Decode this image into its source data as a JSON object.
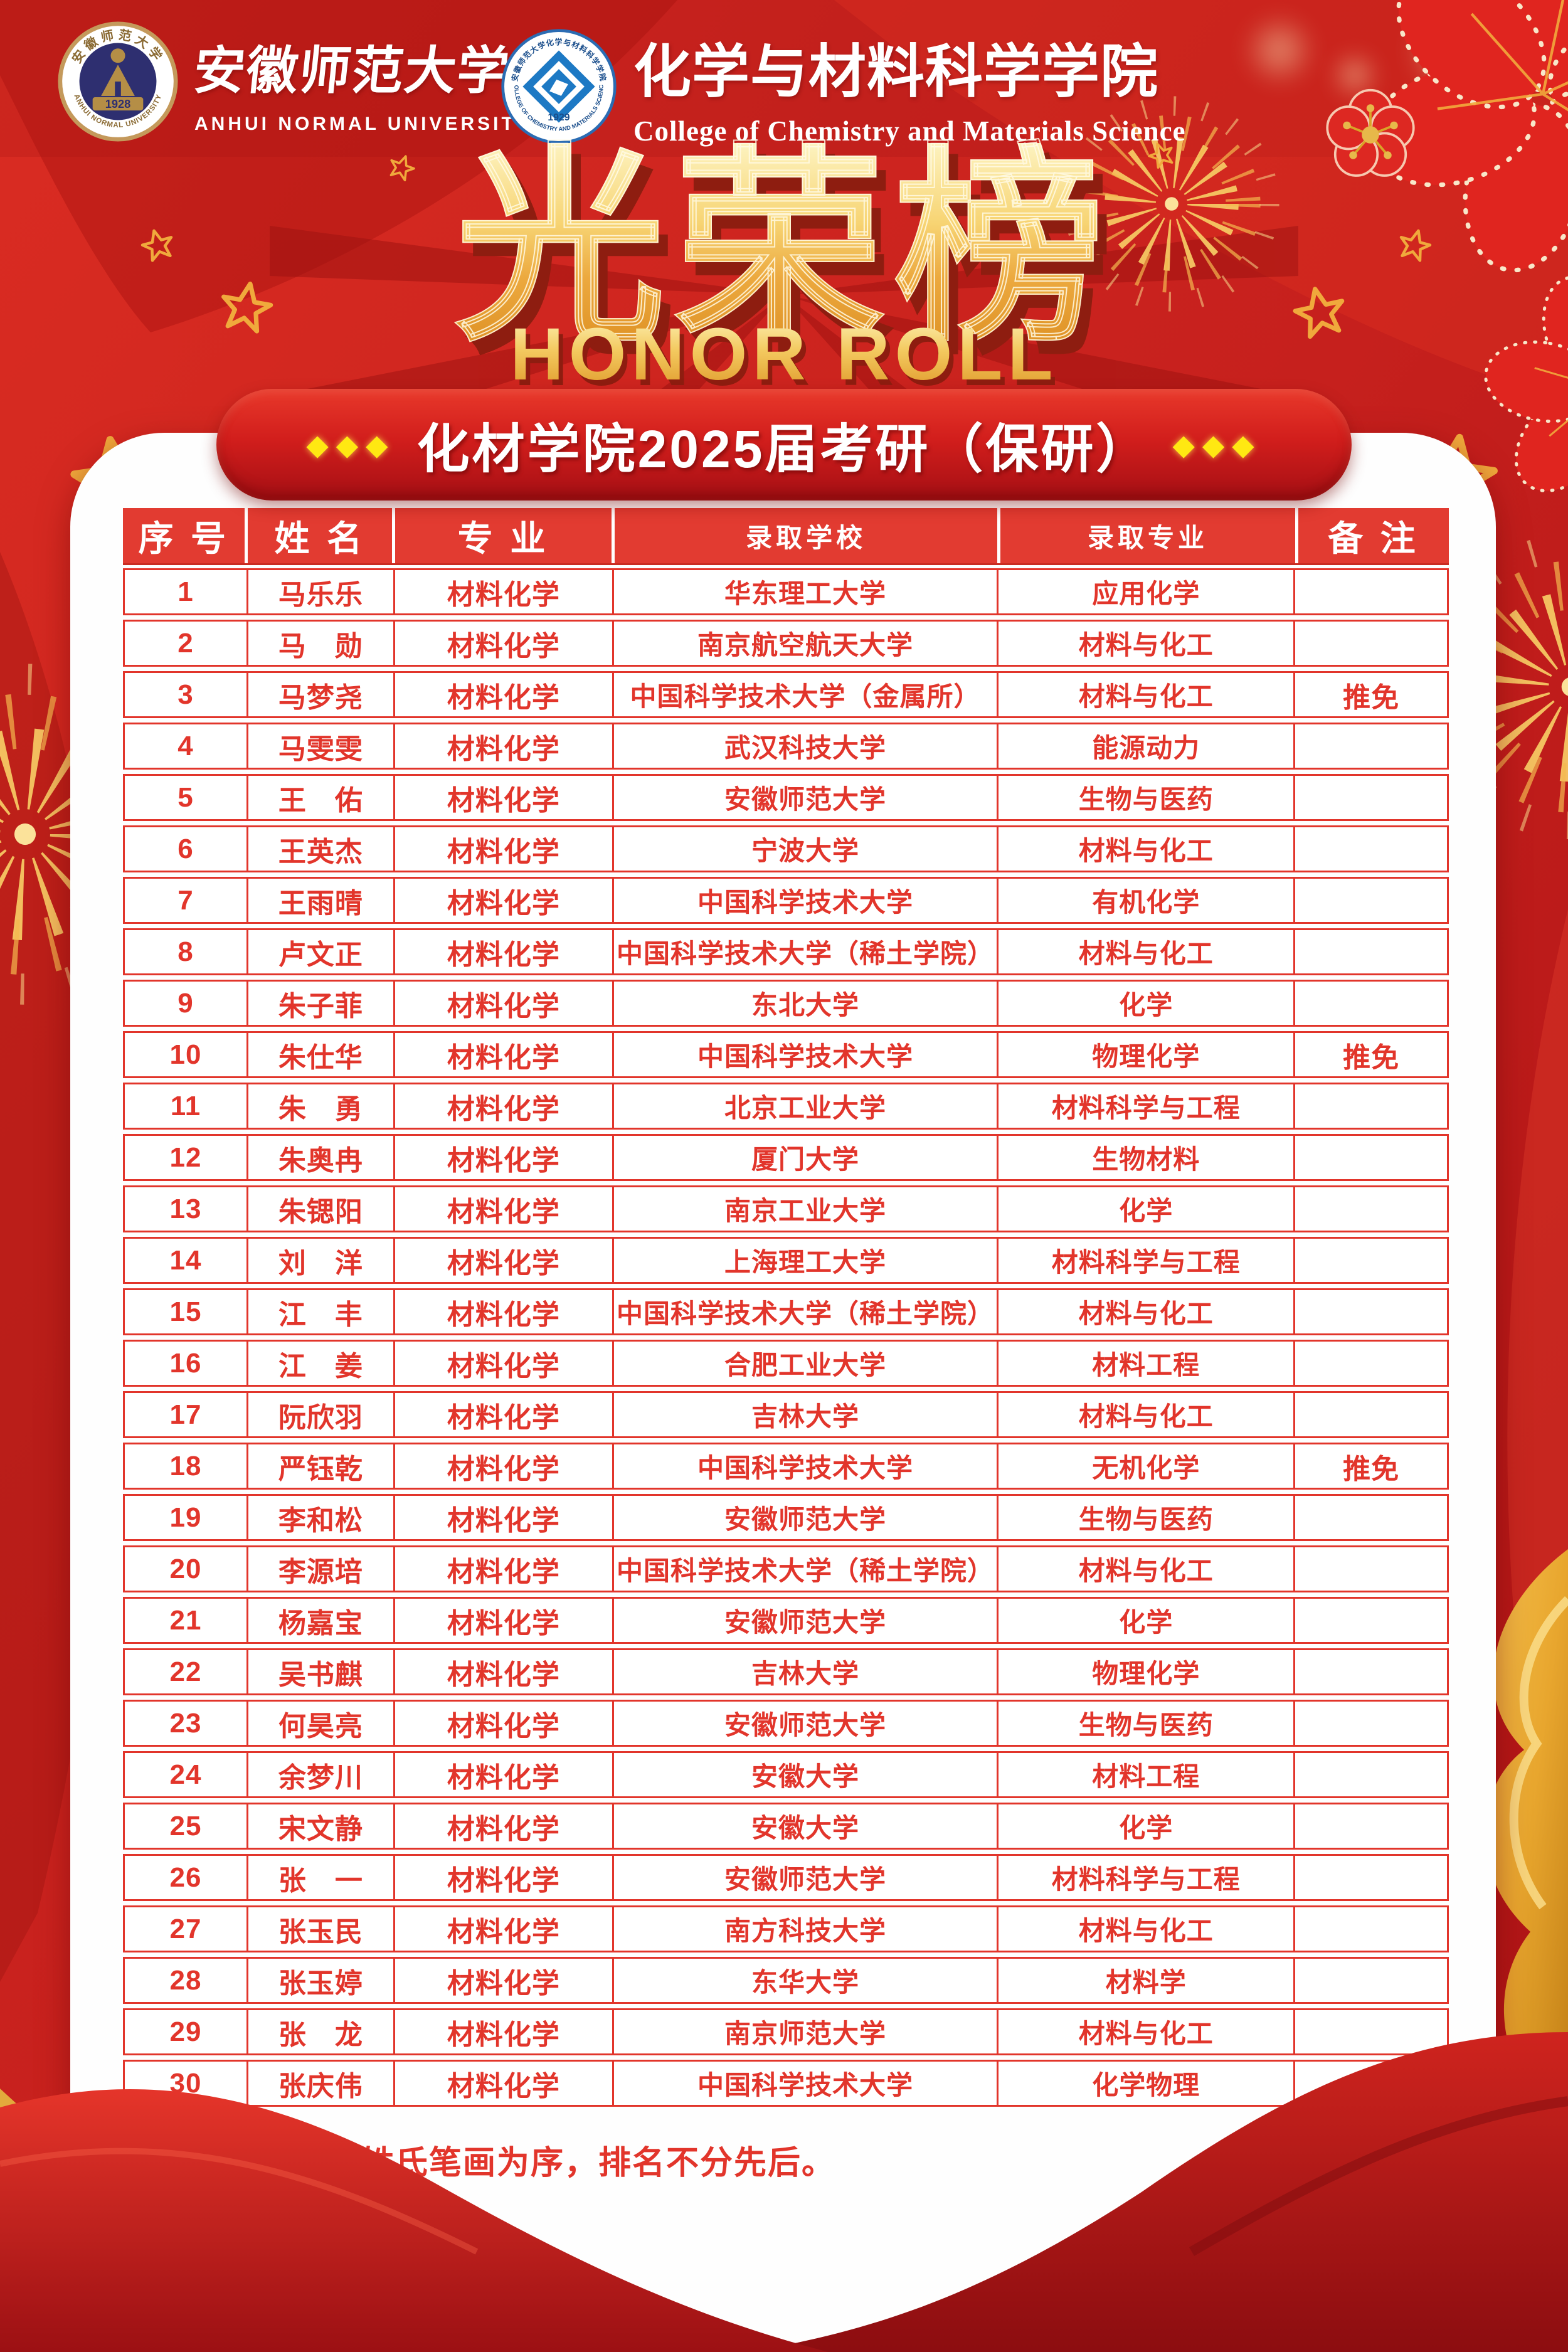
{
  "header": {
    "anu_seal": {
      "year": "1928",
      "ring_zh": "安徽师范大学",
      "ring_en": "ANHUI NORMAL UNIVERSITY"
    },
    "university_name_zh": "安徽师范大学",
    "university_name_en": "ANHUI NORMAL UNIVERSITY",
    "college_seal": {
      "year": "1929",
      "ring_zh": "安徽师范大学化学与材料科学学院",
      "ring_en": "COLLEGE OF CHEMISTRY AND MATERIALS SCIENCE"
    },
    "college_name_zh": "化学与材料科学学院",
    "college_name_en": "College of Chemistry and Materials Science"
  },
  "title": {
    "zh": "光荣榜",
    "en": "HONOR ROLL"
  },
  "banner": {
    "text": "化材学院2025届考研（保研）",
    "diamonds": "◆◆◆"
  },
  "table": {
    "columns": [
      "序 号",
      "姓 名",
      "专 业",
      "录取学校",
      "录取专业",
      "备 注"
    ],
    "rows": [
      {
        "no": "1",
        "name": "马乐乐",
        "major": "材料化学",
        "school": "华东理工大学",
        "admit": "应用化学",
        "note": ""
      },
      {
        "no": "2",
        "name": "马　勋",
        "major": "材料化学",
        "school": "南京航空航天大学",
        "admit": "材料与化工",
        "note": ""
      },
      {
        "no": "3",
        "name": "马梦尧",
        "major": "材料化学",
        "school": "中国科学技术大学（金属所）",
        "admit": "材料与化工",
        "note": "推免"
      },
      {
        "no": "4",
        "name": "马雯雯",
        "major": "材料化学",
        "school": "武汉科技大学",
        "admit": "能源动力",
        "note": ""
      },
      {
        "no": "5",
        "name": "王　佑",
        "major": "材料化学",
        "school": "安徽师范大学",
        "admit": "生物与医药",
        "note": ""
      },
      {
        "no": "6",
        "name": "王英杰",
        "major": "材料化学",
        "school": "宁波大学",
        "admit": "材料与化工",
        "note": ""
      },
      {
        "no": "7",
        "name": "王雨晴",
        "major": "材料化学",
        "school": "中国科学技术大学",
        "admit": "有机化学",
        "note": ""
      },
      {
        "no": "8",
        "name": "卢文正",
        "major": "材料化学",
        "school": "中国科学技术大学（稀土学院）",
        "admit": "材料与化工",
        "note": ""
      },
      {
        "no": "9",
        "name": "朱子菲",
        "major": "材料化学",
        "school": "东北大学",
        "admit": "化学",
        "note": ""
      },
      {
        "no": "10",
        "name": "朱仕华",
        "major": "材料化学",
        "school": "中国科学技术大学",
        "admit": "物理化学",
        "note": "推免"
      },
      {
        "no": "11",
        "name": "朱　勇",
        "major": "材料化学",
        "school": "北京工业大学",
        "admit": "材料科学与工程",
        "note": ""
      },
      {
        "no": "12",
        "name": "朱奥冉",
        "major": "材料化学",
        "school": "厦门大学",
        "admit": "生物材料",
        "note": ""
      },
      {
        "no": "13",
        "name": "朱锶阳",
        "major": "材料化学",
        "school": "南京工业大学",
        "admit": "化学",
        "note": ""
      },
      {
        "no": "14",
        "name": "刘　洋",
        "major": "材料化学",
        "school": "上海理工大学",
        "admit": "材料科学与工程",
        "note": ""
      },
      {
        "no": "15",
        "name": "江　丰",
        "major": "材料化学",
        "school": "中国科学技术大学（稀土学院）",
        "admit": "材料与化工",
        "note": ""
      },
      {
        "no": "16",
        "name": "江　姜",
        "major": "材料化学",
        "school": "合肥工业大学",
        "admit": "材料工程",
        "note": ""
      },
      {
        "no": "17",
        "name": "阮欣羽",
        "major": "材料化学",
        "school": "吉林大学",
        "admit": "材料与化工",
        "note": ""
      },
      {
        "no": "18",
        "name": "严钰乾",
        "major": "材料化学",
        "school": "中国科学技术大学",
        "admit": "无机化学",
        "note": "推免"
      },
      {
        "no": "19",
        "name": "李和松",
        "major": "材料化学",
        "school": "安徽师范大学",
        "admit": "生物与医药",
        "note": ""
      },
      {
        "no": "20",
        "name": "李源培",
        "major": "材料化学",
        "school": "中国科学技术大学（稀土学院）",
        "admit": "材料与化工",
        "note": ""
      },
      {
        "no": "21",
        "name": "杨嘉宝",
        "major": "材料化学",
        "school": "安徽师范大学",
        "admit": "化学",
        "note": ""
      },
      {
        "no": "22",
        "name": "吴书麒",
        "major": "材料化学",
        "school": "吉林大学",
        "admit": "物理化学",
        "note": ""
      },
      {
        "no": "23",
        "name": "何昊亮",
        "major": "材料化学",
        "school": "安徽师范大学",
        "admit": "生物与医药",
        "note": ""
      },
      {
        "no": "24",
        "name": "余梦川",
        "major": "材料化学",
        "school": "安徽大学",
        "admit": "材料工程",
        "note": ""
      },
      {
        "no": "25",
        "name": "宋文静",
        "major": "材料化学",
        "school": "安徽大学",
        "admit": "化学",
        "note": ""
      },
      {
        "no": "26",
        "name": "张　一",
        "major": "材料化学",
        "school": "安徽师范大学",
        "admit": "材料科学与工程",
        "note": ""
      },
      {
        "no": "27",
        "name": "张玉民",
        "major": "材料化学",
        "school": "南方科技大学",
        "admit": "材料与化工",
        "note": ""
      },
      {
        "no": "28",
        "name": "张玉婷",
        "major": "材料化学",
        "school": "东华大学",
        "admit": "材料学",
        "note": ""
      },
      {
        "no": "29",
        "name": "张　龙",
        "major": "材料化学",
        "school": "南京师范大学",
        "admit": "材料与化工",
        "note": ""
      },
      {
        "no": "30",
        "name": "张庆伟",
        "major": "材料化学",
        "school": "中国科学技术大学",
        "admit": "化学物理",
        "note": ""
      }
    ]
  },
  "footer": {
    "note": "备注：分专业按姓氏笔画为序，排名不分先后。"
  },
  "colors": {
    "background_red": "#c6201d",
    "table_red": "#e2352b",
    "header_row_red": "#e23b31",
    "banner_red": "#d21e1c",
    "gold": "#f2b23e",
    "diamond_yellow": "#ffe812",
    "white": "#ffffff"
  }
}
